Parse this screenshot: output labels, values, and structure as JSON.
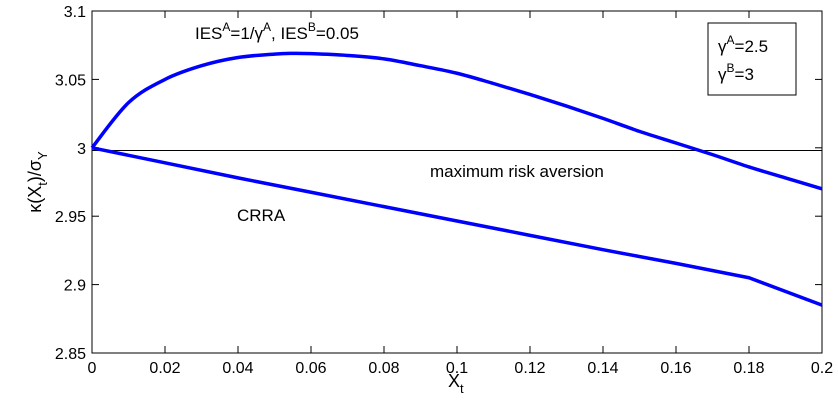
{
  "chart_data": {
    "type": "line",
    "title": "",
    "xlabel": "X",
    "xlabel_sub": "t",
    "ylabel": "κ(X",
    "ylabel_parts": {
      "a": "κ(X",
      "a_sub": "t",
      "b": ")/σ",
      "b_sub": "Y"
    },
    "xlim": [
      0,
      0.2
    ],
    "ylim": [
      2.85,
      3.1
    ],
    "xticks": [
      0,
      0.02,
      0.04,
      0.06,
      0.08,
      0.1,
      0.12,
      0.14,
      0.16,
      0.18,
      0.2
    ],
    "xtick_labels": [
      "0",
      "0.02",
      "0.04",
      "0.06",
      "0.08",
      "0.1",
      "0.12",
      "0.14",
      "0.16",
      "0.18",
      "0.2"
    ],
    "yticks": [
      2.85,
      2.9,
      2.95,
      3,
      3.05,
      3.1
    ],
    "ytick_labels": [
      "2.85",
      "2.9",
      "2.95",
      "3",
      "3.05",
      "3.1"
    ],
    "grid": false,
    "series": [
      {
        "key": "ies",
        "color": "#0000ff",
        "x": [
          0,
          0.01,
          0.02,
          0.03,
          0.04,
          0.05,
          0.055,
          0.06,
          0.07,
          0.08,
          0.09,
          0.1,
          0.11,
          0.12,
          0.13,
          0.14,
          0.15,
          0.16,
          0.17,
          0.18,
          0.19,
          0.2
        ],
        "y": [
          3.0,
          3.033,
          3.05,
          3.06,
          3.066,
          3.0685,
          3.069,
          3.0688,
          3.0675,
          3.065,
          3.06,
          3.0545,
          3.047,
          3.039,
          3.0305,
          3.0215,
          3.012,
          3.0035,
          2.995,
          2.986,
          2.978,
          2.97
        ]
      },
      {
        "key": "crra",
        "color": "#0000ff",
        "x": [
          0,
          0.02,
          0.04,
          0.06,
          0.08,
          0.1,
          0.12,
          0.14,
          0.16,
          0.18,
          0.2
        ],
        "y": [
          3.0,
          2.989,
          2.978,
          2.9675,
          2.957,
          2.9465,
          2.936,
          2.9255,
          2.9155,
          2.905,
          2.885
        ]
      },
      {
        "key": "max",
        "color": "#000000",
        "x": [
          0,
          0.2
        ],
        "y": [
          2.998,
          2.998
        ]
      }
    ],
    "annotations": {
      "ies": {
        "p1": "IES",
        "p1_sup": "A",
        "p2": "=1/γ",
        "p2_sup": "A",
        "p3": ", IES",
        "p3_sup": "B",
        "p4": "=0.05"
      },
      "max": "maximum risk aversion",
      "crra": "CRRA"
    },
    "legend": {
      "position": "top-right",
      "line1": {
        "base": "γ",
        "sup": "A",
        "rest": "=2.5"
      },
      "line2": {
        "base": "γ",
        "sup": "B",
        "rest": "=3"
      }
    }
  }
}
